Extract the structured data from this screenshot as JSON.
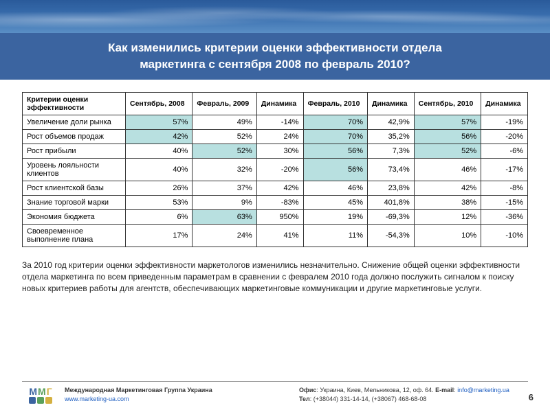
{
  "title_line1": "Как изменились критерии оценки эффективности отдела",
  "title_line2": "маркетинга с сентября 2008 по февраль 2010?",
  "columns": [
    "Критерии оценки эффективности",
    "Сентябрь, 2008",
    "Февраль, 2009",
    "Динамика",
    "Февраль, 2010",
    "Динамика",
    "Сентябрь, 2010",
    "Динамика"
  ],
  "rows": [
    {
      "label": "Увеличение доли рынка",
      "c": [
        {
          "v": "57%",
          "hl": 1
        },
        {
          "v": "49%"
        },
        {
          "v": "-14%"
        },
        {
          "v": "70%",
          "hl": 1
        },
        {
          "v": "42,9%"
        },
        {
          "v": "57%",
          "hl": 1
        },
        {
          "v": "-19%"
        }
      ]
    },
    {
      "label": "Рост объемов продаж",
      "c": [
        {
          "v": "42%",
          "hl": 1
        },
        {
          "v": "52%"
        },
        {
          "v": "24%"
        },
        {
          "v": "70%",
          "hl": 1
        },
        {
          "v": "35,2%"
        },
        {
          "v": "56%",
          "hl": 1
        },
        {
          "v": "-20%"
        }
      ]
    },
    {
      "label": "Рост прибыли",
      "c": [
        {
          "v": "40%"
        },
        {
          "v": "52%",
          "hl": 1
        },
        {
          "v": "30%"
        },
        {
          "v": "56%",
          "hl": 1
        },
        {
          "v": "7,3%"
        },
        {
          "v": "52%",
          "hl": 1
        },
        {
          "v": "-6%"
        }
      ]
    },
    {
      "label": "Уровень лояльности клиентов",
      "c": [
        {
          "v": "40%"
        },
        {
          "v": "32%"
        },
        {
          "v": "-20%"
        },
        {
          "v": "56%",
          "hl": 1
        },
        {
          "v": "73,4%"
        },
        {
          "v": "46%"
        },
        {
          "v": "-17%"
        }
      ]
    },
    {
      "label": "Рост клиентской базы",
      "c": [
        {
          "v": "26%"
        },
        {
          "v": "37%"
        },
        {
          "v": "42%"
        },
        {
          "v": "46%"
        },
        {
          "v": "23,8%"
        },
        {
          "v": "42%"
        },
        {
          "v": "-8%"
        }
      ]
    },
    {
      "label": "Знание торговой марки",
      "c": [
        {
          "v": "53%"
        },
        {
          "v": "9%"
        },
        {
          "v": "-83%"
        },
        {
          "v": "45%"
        },
        {
          "v": "401,8%"
        },
        {
          "v": "38%"
        },
        {
          "v": "-15%"
        }
      ]
    },
    {
      "label": "Экономия бюджета",
      "c": [
        {
          "v": "6%"
        },
        {
          "v": "63%",
          "hl": 1
        },
        {
          "v": "950%"
        },
        {
          "v": "19%"
        },
        {
          "v": "-69,3%"
        },
        {
          "v": "12%"
        },
        {
          "v": "-36%"
        }
      ]
    },
    {
      "label": "Своевременное выполнение плана",
      "c": [
        {
          "v": "17%"
        },
        {
          "v": "24%"
        },
        {
          "v": "41%"
        },
        {
          "v": "11%"
        },
        {
          "v": "-54,3%"
        },
        {
          "v": "10%"
        },
        {
          "v": "-10%"
        }
      ]
    }
  ],
  "description": "За 2010 год критерии оценки эффективности маркетологов изменились незначительно. Снижение общей оценки эффективности отдела маркетинга по всем приведенным параметрам в сравнении с февралем 2010 года должно послужить сигналом к поиску новых критериев работы для агентств, обеспечивающих маркетинговые коммуникации и другие маркетинговые услуги.",
  "footer": {
    "org": "Международная Маркетинговая Группа Украина",
    "site": "www.marketing-ua.com",
    "office_label": "Офис",
    "office": ": Украина, Киев, Мельникова, 12, оф. 64. ",
    "email_label": "E-mail",
    "email": "info@marketing.ua",
    "tel_label": "Тел",
    "tel": ": (+38044) 331-14-14, (+38067) 468-68-08"
  },
  "page_number": "6",
  "colors": {
    "hl": "#b8e0e0",
    "title_bg": "#3b64a0"
  }
}
